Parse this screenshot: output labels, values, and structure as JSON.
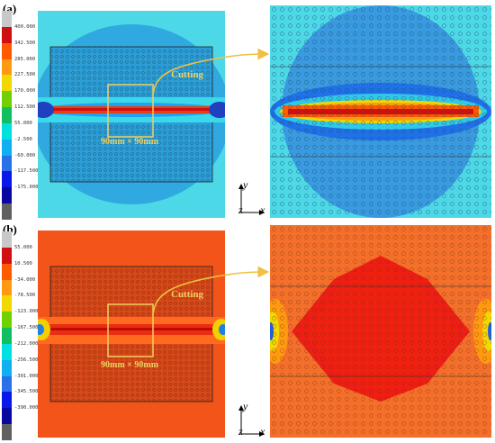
{
  "panels": [
    {
      "label": "(a)",
      "cut_label": "Cutting",
      "dim_label": "90mm × 90mm",
      "legend": {
        "colors": [
          "#c8c8c8",
          "#d01010",
          "#ff5a00",
          "#ff9a10",
          "#f0d800",
          "#70d000",
          "#10c060",
          "#00e0e0",
          "#10b0f0",
          "#2a70e8",
          "#0818e8",
          "#0808a0",
          "#606060"
        ],
        "ticks": [
          "400.000",
          "342.500",
          "285.000",
          "227.500",
          "170.000",
          "112.500",
          "55.000",
          "-2.500",
          "-60.000",
          "-117.500",
          "-175.000"
        ]
      }
    },
    {
      "label": "(b)",
      "cut_label": "Cutting",
      "dim_label": "90mm × 90mm",
      "legend": {
        "colors": [
          "#c8c8c8",
          "#d01010",
          "#ff5a00",
          "#ff9a10",
          "#f0d800",
          "#70d000",
          "#10c060",
          "#00e0e0",
          "#10b0f0",
          "#2a70e8",
          "#0818e8",
          "#0808a0",
          "#606060"
        ],
        "ticks": [
          "55.000",
          "10.500",
          "-34.000",
          "-78.500",
          "-123.000",
          "-167.500",
          "-212.000",
          "-256.500",
          "-301.000",
          "-345.500",
          "-390.000"
        ]
      }
    }
  ],
  "axes": {
    "y": "y",
    "z": "z",
    "x": "x"
  }
}
